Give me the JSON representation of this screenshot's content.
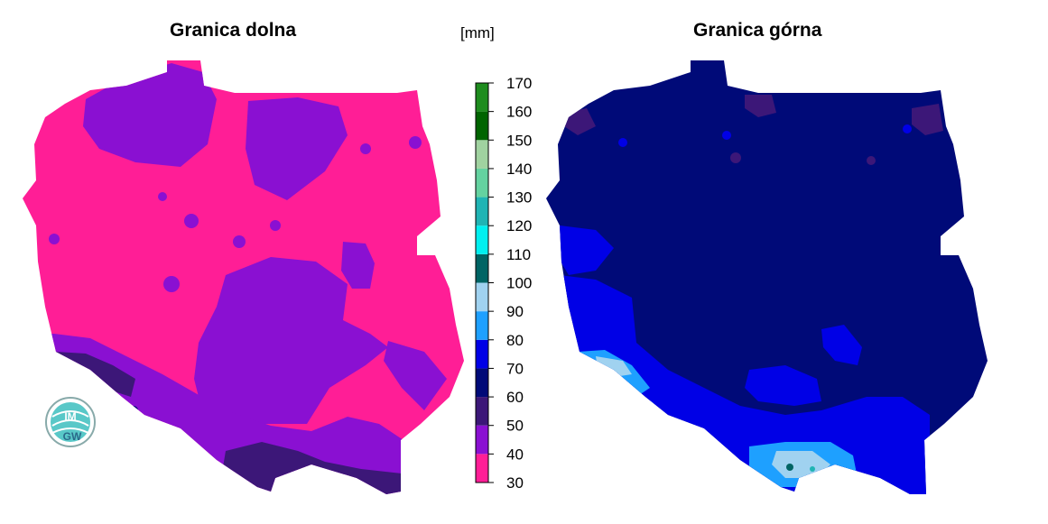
{
  "titles": {
    "left": "Granica dolna",
    "right": "Granica górna"
  },
  "legend": {
    "unit": "[mm]",
    "classes": [
      {
        "from": 30,
        "to": 40,
        "color": "#ff1e96"
      },
      {
        "from": 40,
        "to": 50,
        "color": "#8a10d2"
      },
      {
        "from": 50,
        "to": 60,
        "color": "#3c1778"
      },
      {
        "from": 60,
        "to": 70,
        "color": "#000a78"
      },
      {
        "from": 70,
        "to": 80,
        "color": "#0000e6"
      },
      {
        "from": 80,
        "to": 90,
        "color": "#1ea0ff"
      },
      {
        "from": 90,
        "to": 100,
        "color": "#a0d2f0"
      },
      {
        "from": 100,
        "to": 110,
        "color": "#006464"
      },
      {
        "from": 110,
        "to": 120,
        "color": "#00f0f0"
      },
      {
        "from": 120,
        "to": 130,
        "color": "#20b4b4"
      },
      {
        "from": 130,
        "to": 140,
        "color": "#64d2a0"
      },
      {
        "from": 140,
        "to": 150,
        "color": "#a0d2a0"
      },
      {
        "from": 150,
        "to": 160,
        "color": "#006400"
      },
      {
        "from": 160,
        "to": 170,
        "color": "#1e8c1e"
      }
    ],
    "tick_values": [
      30,
      40,
      50,
      60,
      70,
      80,
      90,
      100,
      110,
      120,
      130,
      140,
      150,
      160,
      170
    ]
  },
  "logo": {
    "text_top": "IM",
    "text_bottom": "GW"
  }
}
